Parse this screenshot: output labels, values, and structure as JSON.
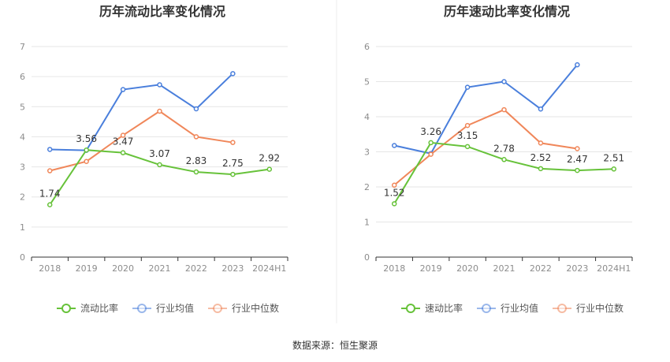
{
  "source": "数据来源：恒生聚源",
  "colors": {
    "company": "#67c23a",
    "industry_avg": "#4a7fdc",
    "industry_median": "#f0875a",
    "grid": "#e6e6e6",
    "axis": "#333333"
  },
  "chart_data": [
    {
      "type": "line",
      "title": "历年流动比率变化情况",
      "categories": [
        "2018",
        "2019",
        "2020",
        "2021",
        "2022",
        "2023",
        "2024H1"
      ],
      "ylim": [
        0,
        7
      ],
      "yticks": [
        "0",
        "1",
        "2",
        "3",
        "4",
        "5",
        "6",
        "7"
      ],
      "grid": true,
      "legend_position": "bottom",
      "series": [
        {
          "name": "流动比率",
          "values": [
            1.74,
            3.56,
            3.47,
            3.07,
            2.83,
            2.75,
            2.92
          ],
          "labels": [
            "1.74",
            "3.56",
            "3.47",
            "3.07",
            "2.83",
            "2.75",
            "2.92"
          ]
        },
        {
          "name": "行业均值",
          "values": [
            3.58,
            3.55,
            5.57,
            5.73,
            4.93,
            6.1,
            null
          ]
        },
        {
          "name": "行业中位数",
          "values": [
            2.87,
            3.18,
            4.05,
            4.85,
            4.0,
            3.81,
            null
          ]
        }
      ]
    },
    {
      "type": "line",
      "title": "历年速动比率变化情况",
      "categories": [
        "2018",
        "2019",
        "2020",
        "2021",
        "2022",
        "2023",
        "2024H1"
      ],
      "ylim": [
        0,
        6
      ],
      "yticks": [
        "0",
        "1",
        "2",
        "3",
        "4",
        "5",
        "6"
      ],
      "grid": true,
      "legend_position": "bottom",
      "series": [
        {
          "name": "速动比率",
          "values": [
            1.52,
            3.26,
            3.15,
            2.78,
            2.52,
            2.47,
            2.51
          ],
          "labels": [
            "1.52",
            "3.26",
            "3.15",
            "2.78",
            "2.52",
            "2.47",
            "2.51"
          ]
        },
        {
          "name": "行业均值",
          "values": [
            3.18,
            2.95,
            4.84,
            5.0,
            4.22,
            5.48,
            null
          ]
        },
        {
          "name": "行业中位数",
          "values": [
            2.05,
            2.93,
            3.75,
            4.2,
            3.25,
            3.09,
            null
          ]
        }
      ]
    }
  ]
}
